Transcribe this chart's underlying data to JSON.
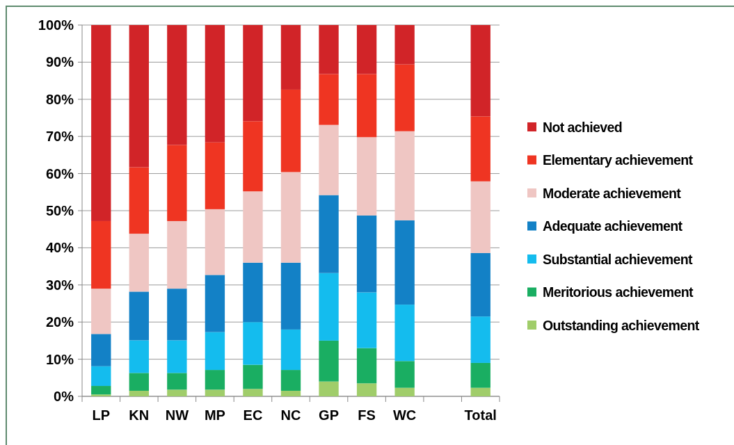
{
  "chart_data": {
    "type": "bar",
    "stacked": true,
    "categories": [
      "LP",
      "KN",
      "NW",
      "MP",
      "EC",
      "NC",
      "GP",
      "FS",
      "WC",
      null,
      "Total"
    ],
    "series": [
      {
        "name": "Outstanding achievement",
        "color": "#a0cd6a",
        "values": [
          0.5,
          1.5,
          1.8,
          1.8,
          2.0,
          1.5,
          4.0,
          3.5,
          2.3,
          null,
          2.3
        ]
      },
      {
        "name": "Meritorious achievement",
        "color": "#1aae62",
        "values": [
          2.3,
          4.8,
          4.5,
          5.3,
          6.5,
          5.6,
          11.0,
          9.5,
          7.2,
          null,
          6.7
        ]
      },
      {
        "name": "Substantial achievement",
        "color": "#14bcee",
        "values": [
          5.3,
          8.8,
          8.8,
          10.2,
          11.5,
          10.9,
          18.2,
          15.0,
          15.2,
          null,
          12.5
        ]
      },
      {
        "name": "Adequate achievement",
        "color": "#1381c6",
        "values": [
          8.7,
          13.1,
          13.9,
          15.4,
          16.0,
          18.0,
          21.0,
          20.7,
          22.7,
          null,
          17.1
        ]
      },
      {
        "name": "Moderate achievement",
        "color": "#efc6c3",
        "values": [
          12.2,
          15.6,
          18.2,
          17.7,
          19.2,
          24.4,
          18.9,
          21.1,
          24.0,
          null,
          19.3
        ]
      },
      {
        "name": "Elementary achievement",
        "color": "#ef3522",
        "values": [
          18.2,
          17.9,
          20.5,
          18.0,
          18.9,
          22.2,
          13.7,
          17.0,
          18.0,
          null,
          17.5
        ]
      },
      {
        "name": "Not achieved",
        "color": "#d12428",
        "values": [
          52.8,
          38.3,
          32.3,
          31.6,
          25.9,
          17.4,
          13.2,
          13.2,
          10.6,
          null,
          24.6
        ]
      }
    ],
    "ylim": [
      0,
      100
    ],
    "yticks": [
      {
        "value": 0,
        "label": "0%"
      },
      {
        "value": 10,
        "label": "10%"
      },
      {
        "value": 20,
        "label": "20%"
      },
      {
        "value": 30,
        "label": "30%"
      },
      {
        "value": 40,
        "label": "40%"
      },
      {
        "value": 50,
        "label": "50%"
      },
      {
        "value": 60,
        "label": "60%"
      },
      {
        "value": 70,
        "label": "70%"
      },
      {
        "value": 80,
        "label": "80%"
      },
      {
        "value": 90,
        "label": "90%"
      },
      {
        "value": 100,
        "label": "100%"
      }
    ],
    "grid": "y",
    "legend": "right"
  }
}
